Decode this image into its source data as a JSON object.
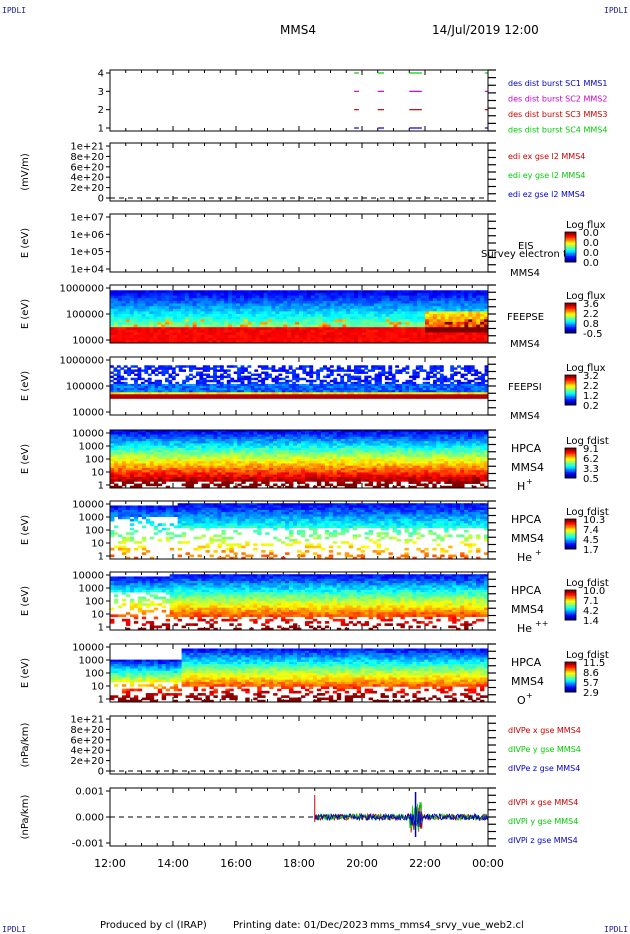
{
  "header": {
    "spacecraft": "MMS4",
    "date_time": "14/Jul/2019 12:00",
    "corner_left": "IPDLI",
    "corner_right": "IPDLI"
  },
  "footer": {
    "produced_by": "Produced by cl (IRAP)",
    "printing_date": "Printing date: 01/Dec/2023",
    "filename": "mms_mms4_srvy_vue_web2.cl"
  },
  "colors": {
    "blue": "#0000cc",
    "magenta": "#cc00cc",
    "red": "#cc0000",
    "green": "#00cc00"
  },
  "chart_data": [
    {
      "id": "burst-flags",
      "type": "line",
      "yticks": [
        "4",
        "3",
        "2",
        "1"
      ],
      "xticks": [
        "12:00",
        "14:00",
        "16:00",
        "18:00",
        "20:00",
        "22:00",
        "00:00"
      ],
      "legend": [
        {
          "text": "des dist burst SC1 MMS1",
          "color": "#0000cc"
        },
        {
          "text": "des dist burst SC2 MMS2",
          "color": "#cc00cc"
        },
        {
          "text": "des dist burst SC3 MMS3",
          "color": "#cc0000"
        },
        {
          "text": "des dist burst SC4 MMS4",
          "color": "#00cc00"
        }
      ],
      "segments_hours": [
        [
          19.75,
          19.9
        ],
        [
          20.5,
          20.7
        ],
        [
          21.5,
          21.9
        ]
      ]
    },
    {
      "id": "edi-field",
      "type": "line",
      "ylabel": "(mV/m)",
      "yticks": [
        "1e+21",
        "8e+20",
        "6e+20",
        "4e+20",
        "2e+20",
        "0"
      ],
      "legend": [
        {
          "text": "edi ex gse l2 MMS4",
          "color": "#cc0000"
        },
        {
          "text": "edi ey gse l2 MMS4",
          "color": "#00cc00"
        },
        {
          "text": "edi ez gse l2 MMS4",
          "color": "#0000cc"
        }
      ]
    },
    {
      "id": "eis",
      "type": "heatmap",
      "ylabel": "E (eV)",
      "yticks": [
        "1e+07",
        "1e+06",
        "1e+05",
        "1e+04"
      ],
      "label_top": "EIS",
      "label_bottom": "MMS4",
      "overlay_text": "Survey electron to",
      "colorbar_title": "Log flux",
      "colorbar_ticks": [
        "0.0",
        "0.0",
        "0.0",
        "0.0"
      ]
    },
    {
      "id": "feepse",
      "type": "heatmap",
      "ylabel": "E (eV)",
      "yticks": [
        "1000000",
        "100000",
        "10000"
      ],
      "label_top": "FEEPSE",
      "label_bottom": "MMS4",
      "colorbar_title": "Log flux",
      "colorbar_ticks": [
        "3.6",
        "2.2",
        "0.8",
        "-0.5"
      ]
    },
    {
      "id": "feepsi",
      "type": "heatmap",
      "ylabel": "E (eV)",
      "yticks": [
        "1000000",
        "100000",
        "10000"
      ],
      "label_top": "FEEPSI",
      "label_bottom": "MMS4",
      "colorbar_title": "Log flux",
      "colorbar_ticks": [
        "3.2",
        "2.2",
        "1.2",
        "0.2"
      ]
    },
    {
      "id": "hpca-h",
      "type": "heatmap",
      "ylabel": "E (eV)",
      "yticks": [
        "10000",
        "1000",
        "100",
        "10",
        "1"
      ],
      "label_top": "HPCA",
      "label_mid": "MMS4",
      "species": "H",
      "charge": "+",
      "colorbar_title": "Log fdist",
      "colorbar_ticks": [
        "9.1",
        "6.2",
        "3.3",
        "0.5"
      ]
    },
    {
      "id": "hpca-he",
      "type": "heatmap",
      "ylabel": "E (eV)",
      "yticks": [
        "10000",
        "1000",
        "100",
        "10",
        "1"
      ],
      "label_top": "HPCA",
      "label_mid": "MMS4",
      "species": "He",
      "charge": "+",
      "colorbar_title": "Log fdist",
      "colorbar_ticks": [
        "10.3",
        "7.4",
        "4.5",
        "1.7"
      ]
    },
    {
      "id": "hpca-he2",
      "type": "heatmap",
      "ylabel": "E (eV)",
      "yticks": [
        "10000",
        "1000",
        "100",
        "10",
        "1"
      ],
      "label_top": "HPCA",
      "label_mid": "MMS4",
      "species": "He",
      "charge": "++",
      "colorbar_title": "Log fdist",
      "colorbar_ticks": [
        "10.0",
        "7.1",
        "4.2",
        "1.4"
      ]
    },
    {
      "id": "hpca-o",
      "type": "heatmap",
      "ylabel": "E (eV)",
      "yticks": [
        "10000",
        "1000",
        "100",
        "10",
        "1"
      ],
      "label_top": "HPCA",
      "label_mid": "MMS4",
      "species": "O",
      "charge": "+",
      "colorbar_title": "Log fdist",
      "colorbar_ticks": [
        "11.5",
        "8.6",
        "5.7",
        "2.9"
      ]
    },
    {
      "id": "divpe",
      "type": "line",
      "ylabel": "(nPa/km)",
      "yticks": [
        "1e+21",
        "8e+20",
        "6e+20",
        "4e+20",
        "2e+20",
        "0"
      ],
      "legend": [
        {
          "text": "dIVPe x gse MMS4",
          "color": "#cc0000"
        },
        {
          "text": "dIVPe y gse MMS4",
          "color": "#00cc00"
        },
        {
          "text": "dIVPe z gse MMS4",
          "color": "#0000cc"
        }
      ]
    },
    {
      "id": "divpi",
      "type": "line",
      "ylabel": "(nPa/km)",
      "yticks": [
        "0.001",
        "0.000",
        "-0.001"
      ],
      "legend": [
        {
          "text": "dIVPi x gse MMS4",
          "color": "#cc0000"
        },
        {
          "text": "dIVPi y gse MMS4",
          "color": "#00cc00"
        },
        {
          "text": "dIVPi z gse MMS4",
          "color": "#0000cc"
        }
      ],
      "data_start_hour": 18.5,
      "spike_hour": 21.7,
      "ylim": [
        -0.0015,
        0.0015
      ]
    }
  ]
}
